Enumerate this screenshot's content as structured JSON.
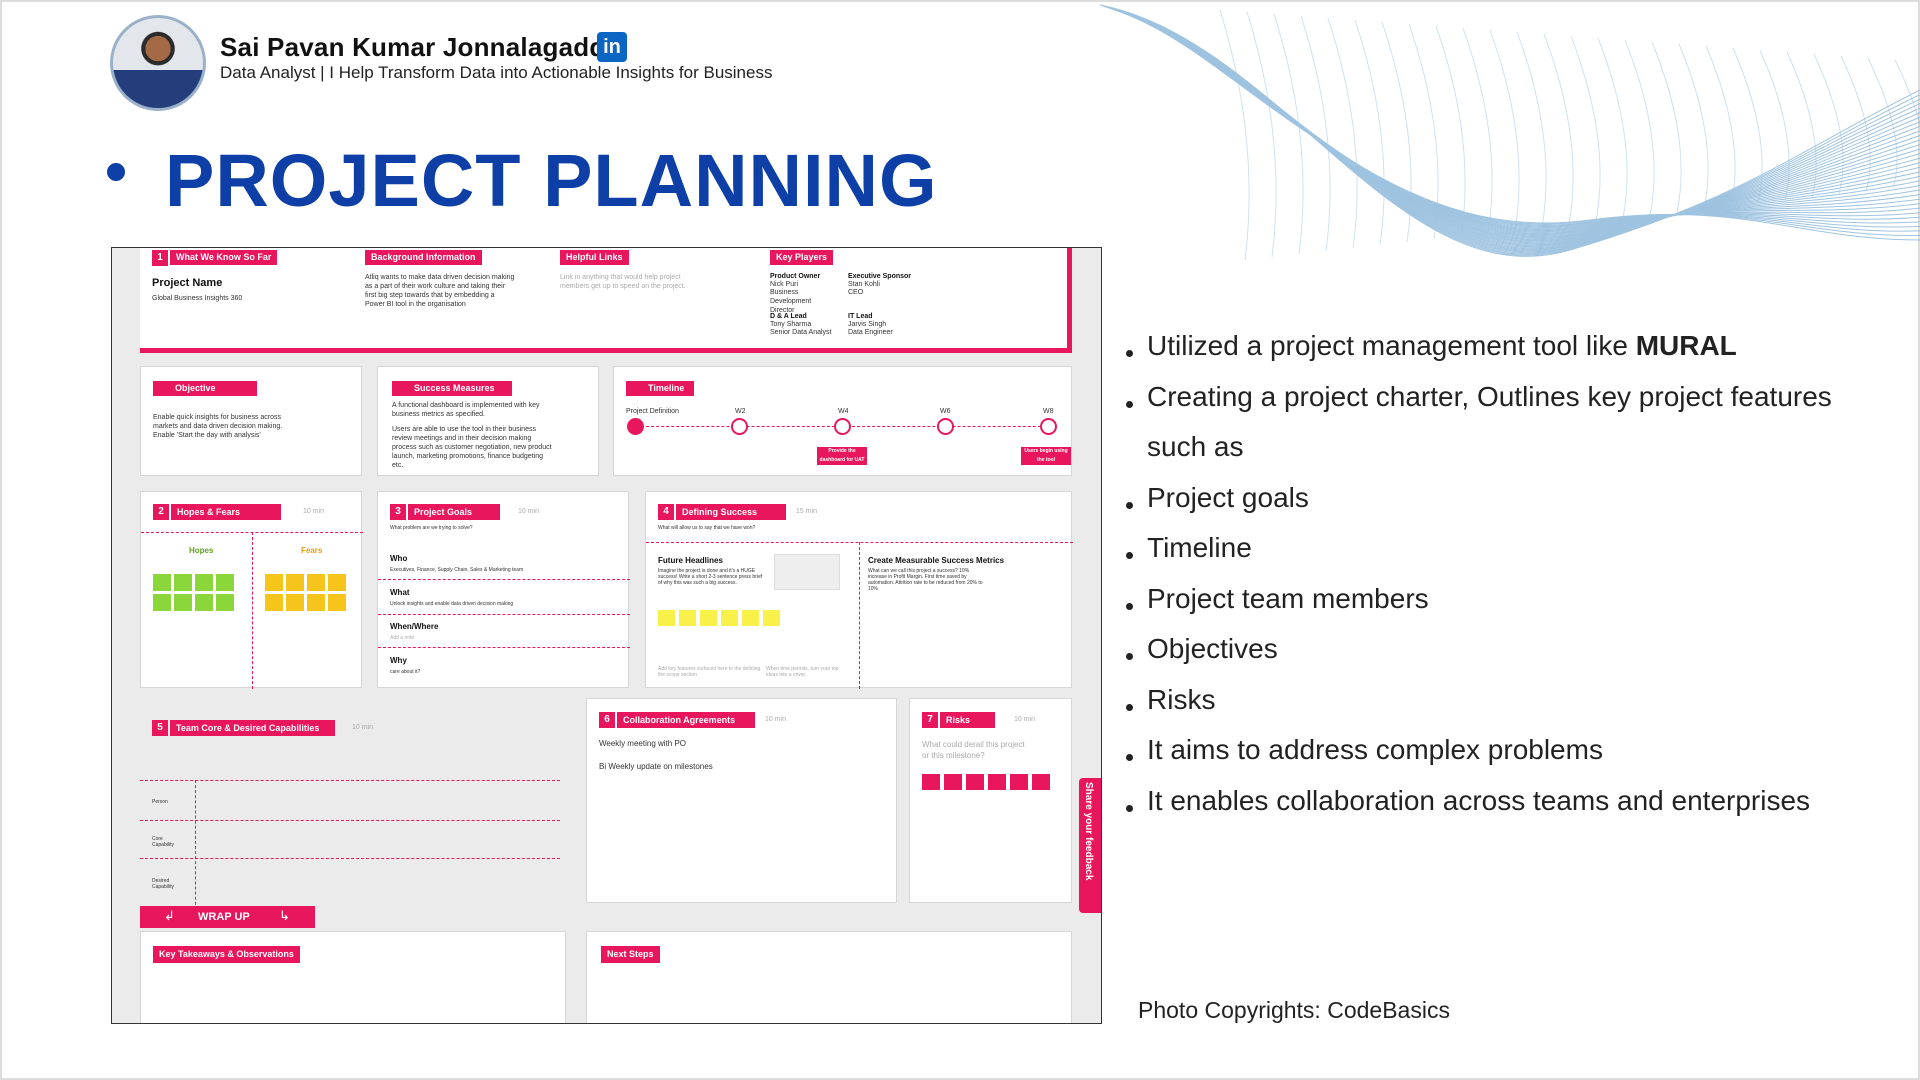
{
  "author": {
    "name": "Sai Pavan Kumar Jonnalagadda",
    "linkedin_badge": "in",
    "tagline": "Data Analyst | I Help Transform Data into Actionable Insights for Business"
  },
  "title": "PROJECT PLANNING",
  "mural": {
    "what_we_know": {
      "num": "1",
      "tag": "What We Know So Far",
      "project_name_label": "Project Name",
      "project_name_value": "Global Business Insights 360"
    },
    "background": {
      "tag": "Background Information",
      "text": "Atliq wants to make data driven decision making as a part of their work culture and taking their first big step towards that by embedding a Power BI tool in the organisation"
    },
    "helpful_links": {
      "tag": "Helpful Links",
      "text": "Link in anything that would help project members get up to speed on the project."
    },
    "key_players": {
      "tag": "Key Players",
      "product_owner": "Product Owner",
      "product_owner_name": "Nick Puri",
      "product_owner_role": "Business Development Director",
      "exec_sponsor": "Executive Sponsor",
      "exec_sponsor_name": "Stan Kohli",
      "exec_sponsor_role": "CEO",
      "da_lead": "D & A Lead",
      "da_lead_name": "Tony Sharma",
      "da_lead_role": "Senior Data Analyst",
      "it_lead": "IT Lead",
      "it_lead_name": "Jarvis Singh",
      "it_lead_role": "Data Engineer"
    },
    "objective": {
      "tag": "Objective",
      "text": "Enable quick insights for business across markets and data driven decision making. Enable 'Start the day with analysis'"
    },
    "success_measures": {
      "tag": "Success Measures",
      "text1": "A functional dashboard is implemented with key business metrics as specified.",
      "text2": "Users are able to use the tool in their business review meetings and in their decision making process such as customer negotiation, new product launch, marketing promotions, finance budgeting etc."
    },
    "timeline": {
      "tag": "Timeline",
      "start": "Project Definition",
      "w2": "W2",
      "w4": "W4",
      "w6": "W6",
      "w8": "W8",
      "note1": "Provide the dashboard for UAT",
      "note2": "Users begin using the tool"
    },
    "hopes_fears": {
      "num": "2",
      "tag": "Hopes & Fears",
      "time": "10 min",
      "hopes": "Hopes",
      "fears": "Fears"
    },
    "project_goals": {
      "num": "3",
      "tag": "Project Goals",
      "time": "10 min",
      "prompt": "What problem are we trying to solve?",
      "who": "Who",
      "who_text": "Executives, Finance, Supply Chain, Sales & Marketing team",
      "what": "What",
      "what_text": "Unlock insights and enable data driven decision making",
      "when": "When/Where",
      "when_text": "Add a note",
      "why": "Why",
      "why_text": "care about it?"
    },
    "defining_success": {
      "num": "4",
      "tag": "Defining Success",
      "time": "15 min",
      "prompt": "What will allow us to say that we have won?",
      "future": "Future Headlines",
      "future_text": "Imagine the project is done and it's a HUGE success! Write a short 2-3 sentence press brief of why this was such a big success.",
      "metrics": "Create Measurable Success Metrics",
      "metrics_text": "What can we call this project a success? 10% increase in Profit Margin. First time saved by automation. Attrition rate to be reduced from 20% to 10%",
      "foot1": "Add key features surfaced here to the defining the scope section",
      "foot2": "When time permits, turn your top ideas into a cover."
    },
    "team_core": {
      "num": "5",
      "tag": "Team Core & Desired Capabilities",
      "time": "10 min",
      "person": "Person",
      "core": "Core Capability",
      "desired": "Desired Capability"
    },
    "collab": {
      "num": "6",
      "tag": "Collaboration Agreements",
      "time": "10 min",
      "line1": "Weekly meeting with PO",
      "line2": "Bi Weekly update on milestones"
    },
    "risks": {
      "num": "7",
      "tag": "Risks",
      "time": "10 min",
      "prompt": "What could derail this project or this milestone?"
    },
    "feedback": "Share your feedback",
    "wrap_up": "WRAP UP",
    "takeaways": "Key Takeaways & Observations",
    "next_steps": "Next Steps"
  },
  "bullets": [
    {
      "pre": "Utilized a project management tool like ",
      "bold": "MURAL"
    },
    {
      "pre": "Creating a project charter, Outlines key project features",
      "bold": ""
    },
    {
      "pre": "such as",
      "bold": ""
    },
    {
      "pre": " Project goals",
      "bold": ""
    },
    {
      "pre": " Timeline",
      "bold": ""
    },
    {
      "pre": " Project team members",
      "bold": ""
    },
    {
      "pre": " Objectives",
      "bold": ""
    },
    {
      "pre": " Risks",
      "bold": ""
    },
    {
      "pre": "It aims to address complex problems",
      "bold": ""
    },
    {
      "pre": "It enables collaboration across teams and enterprises",
      "bold": ""
    }
  ],
  "copyright": "Photo Copyrights: CodeBasics",
  "colors": {
    "title_blue": "#0d3fa6",
    "mural_pink": "#e8175d",
    "linkedin_blue": "#0a66c2",
    "hopes_green": "#8bd63a",
    "fears_yellow": "#f5c51c"
  }
}
